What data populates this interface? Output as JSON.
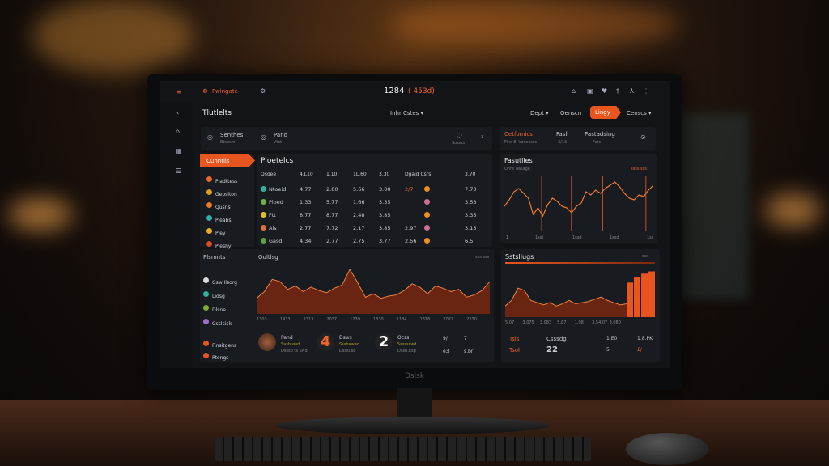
{
  "colors": {
    "accent": "#f2642a",
    "screen_bg": "#121418",
    "panel_bg": "#181b20"
  },
  "topbar": {
    "logo": "Fwingate",
    "title": "1284",
    "title_sub": "( 453d)",
    "icons": [
      "home-icon",
      "image-icon",
      "heart-icon",
      "pin-icon",
      "user-icon",
      "more-icon"
    ]
  },
  "header": {
    "title": "Tlutlelts",
    "filter": "Inhr Cstes ▾",
    "tabs": [
      "Dept ▾",
      "Oenscn"
    ],
    "active_button": "Lingy",
    "menu": "Censcs ▾"
  },
  "cards": [
    {
      "name": "Senthes",
      "sub": "Btsesm"
    },
    {
      "name": "Pand",
      "sub": "Vtct"
    },
    {
      "name": "",
      "sub": "Sosaor"
    }
  ],
  "stats_card": {
    "title": "Cetfomics",
    "sub": "Fins 8' Vonessss",
    "items": [
      {
        "label": "Fasli",
        "value": "3/13"
      },
      {
        "label": "Pastadsing",
        "value": "Fsrs"
      }
    ]
  },
  "leftnav": {
    "active": "Cunntlis",
    "items": [
      "Pladttess",
      "Gepsiton",
      "Qusns",
      "Pieabs",
      "Pley",
      "Pleshy"
    ]
  },
  "table": {
    "title": "Ploetelcs",
    "headers": [
      "Qsdee",
      "4.L10",
      "1.10",
      "1L.60",
      "3.30",
      "Dgaid Csrs",
      "3.70"
    ],
    "rows": [
      [
        "Ntoeid",
        "4.77",
        "2.80",
        "5.66",
        "3.00",
        "2/7",
        "7.73"
      ],
      [
        "Ploed",
        "1.33",
        "5.77",
        "1.66",
        "3.35",
        "",
        "3.53"
      ],
      [
        "Ftt",
        "8.77",
        "8.77",
        "2.48",
        "3.85",
        "",
        "3.35"
      ],
      [
        "Als",
        "2.77",
        "7.72",
        "2.17",
        "3.85",
        "2.97",
        "3.13"
      ],
      [
        "Gasd",
        "4.34",
        "2.77",
        "2.75",
        "3.77",
        "2.56",
        "6.5"
      ]
    ]
  },
  "line_panel": {
    "title": "Fasutlles",
    "subtitle": "Onre uasage",
    "legend": "ssss sss",
    "x_ticks": [
      "1",
      "1sst",
      "1ssd",
      "1ssd",
      "1sss"
    ],
    "values": [
      30,
      38,
      48,
      52,
      46,
      40,
      20,
      28,
      18,
      32,
      40,
      36,
      30,
      28,
      22,
      30,
      34,
      48,
      44,
      50,
      46,
      52,
      56,
      60,
      54,
      46,
      40,
      38,
      44,
      42,
      50,
      56
    ]
  },
  "bottom_left": {
    "title": "Plsmnts",
    "chart_title": "Oultlsg",
    "legend": "sss sss",
    "list": [
      "Gsw Ilsorg",
      "Lidsg",
      "Dlsne",
      "Gsslsisls"
    ],
    "x_ticks": [
      "1303",
      "1433",
      "1313",
      "2037",
      "1239",
      "1330",
      "1184",
      "1318",
      "2077",
      "2330"
    ],
    "values": [
      28,
      40,
      62,
      58,
      44,
      50,
      40,
      48,
      42,
      38,
      46,
      52,
      80,
      56,
      30,
      36,
      28,
      32,
      34,
      42,
      54,
      48,
      36,
      50,
      46,
      40,
      44,
      30,
      34,
      42,
      58
    ],
    "extra": [
      "Finsitgens",
      "Ptongs"
    ],
    "stats": [
      {
        "num": "",
        "name": "Pand",
        "sub1": "Sashlswd",
        "sub2": "Dsssp ts 5Nd"
      },
      {
        "num": "4",
        "name": "Dsws",
        "sub1": "Sssbawad",
        "sub2": "Dsssl.sb"
      },
      {
        "num": "2",
        "name": "Ocss",
        "sub1": "Sssssswd",
        "sub2": "Dssn.Esp"
      }
    ],
    "mini": [
      [
        "9/",
        "e3"
      ],
      [
        "7",
        "s.br"
      ]
    ]
  },
  "bottom_right": {
    "title": "Sstsllugs",
    "legend": "sss",
    "x_ticks": [
      "5.07",
      "3.075",
      "3.083",
      "5.87",
      "1.98",
      "3.54.07",
      "3.080"
    ],
    "values": [
      20,
      30,
      52,
      48,
      30,
      26,
      22,
      26,
      20,
      24,
      30,
      24,
      26,
      28,
      32,
      36,
      30,
      26,
      22,
      24
    ],
    "bars": [
      62,
      72,
      78,
      82
    ],
    "rows": [
      {
        "label": "Tsls",
        "name": "Csssdg",
        "a": "1.E0",
        "b": "1.8.PK"
      },
      {
        "label": "Tsol",
        "name": "22",
        "a": "5",
        "b": "£/"
      }
    ]
  },
  "brand": "Dslsk"
}
